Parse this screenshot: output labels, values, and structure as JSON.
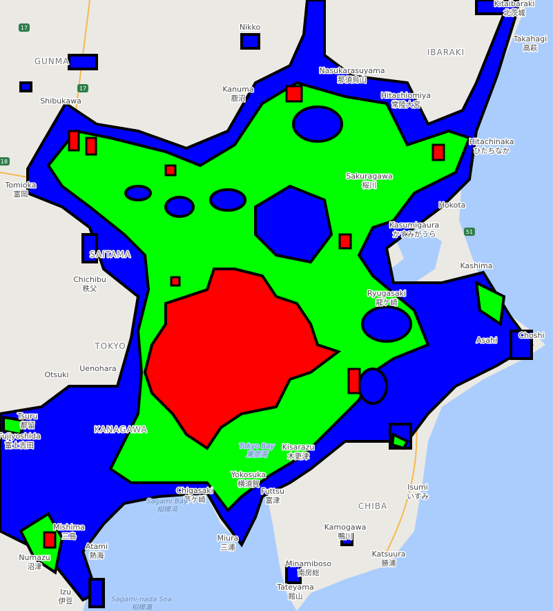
{
  "map": {
    "colors": {
      "land": "#ebe9e4",
      "sea": "#abcdfd",
      "overlay_low": "#0000ff",
      "overlay_mid": "#00ff00",
      "overlay_high": "#ff0000",
      "outline": "#000000",
      "highway": "#f7b84d"
    },
    "regions": [
      "GUNMA",
      "IBARAKI",
      "CHIBA",
      "TOKYO",
      "SAITAMA",
      "KANAGAWA"
    ],
    "seas": [
      {
        "name": "Tokyo Bay",
        "ja": "東京湾"
      },
      {
        "name": "Sagami Bay",
        "ja": "相模湾"
      },
      {
        "name": "Sagami-nada Sea",
        "ja": "相模灘"
      }
    ],
    "places": [
      {
        "name": "Kitaibaraki",
        "ja": "北茨城"
      },
      {
        "name": "Takahagi",
        "ja": "高萩"
      },
      {
        "name": "Nasukarasuyama",
        "ja": "那須烏山"
      },
      {
        "name": "Hitachiomiya",
        "ja": "常陸大宮"
      },
      {
        "name": "Kanuma",
        "ja": "鹿沼"
      },
      {
        "name": "Hitachinaka",
        "ja": "ひたちなか"
      },
      {
        "name": "Sakuragawa",
        "ja": "桜川"
      },
      {
        "name": "Tomioka",
        "ja": "富岡"
      },
      {
        "name": "Hokota",
        "ja": ""
      },
      {
        "name": "Kasumigaura",
        "ja": "かすみがうら"
      },
      {
        "name": "Kashima",
        "ja": ""
      },
      {
        "name": "Chichibu",
        "ja": "秩父"
      },
      {
        "name": "Ryugasaki",
        "ja": "龍ケ崎"
      },
      {
        "name": "Choshi",
        "ja": ""
      },
      {
        "name": "Asahi",
        "ja": ""
      },
      {
        "name": "Otsuki",
        "ja": ""
      },
      {
        "name": "Uenohara",
        "ja": ""
      },
      {
        "name": "Tsuru",
        "ja": "都留"
      },
      {
        "name": "Fujiyoshida",
        "ja": "富士吉田"
      },
      {
        "name": "Kisarazu",
        "ja": "木更津"
      },
      {
        "name": "Yokosuka",
        "ja": "横須賀"
      },
      {
        "name": "Futtsu",
        "ja": "富津"
      },
      {
        "name": "Chigasaki",
        "ja": "茅ケ崎"
      },
      {
        "name": "Miura",
        "ja": "三浦"
      },
      {
        "name": "Kamogawa",
        "ja": "鴨川"
      },
      {
        "name": "Isumi",
        "ja": "いすみ"
      },
      {
        "name": "Katsuura",
        "ja": "勝浦"
      },
      {
        "name": "Minamiboso",
        "ja": "南房総"
      },
      {
        "name": "Tateyama",
        "ja": "館山"
      },
      {
        "name": "Mishima",
        "ja": "三島"
      },
      {
        "name": "Atami",
        "ja": "熱海"
      },
      {
        "name": "Numazu",
        "ja": "沼津"
      },
      {
        "name": "Izu",
        "ja": "伊豆"
      },
      {
        "name": "Shibukawa",
        "ja": ""
      },
      {
        "name": "Nikko",
        "ja": ""
      }
    ],
    "route_shields": [
      "17",
      "17",
      "18",
      "51"
    ]
  }
}
